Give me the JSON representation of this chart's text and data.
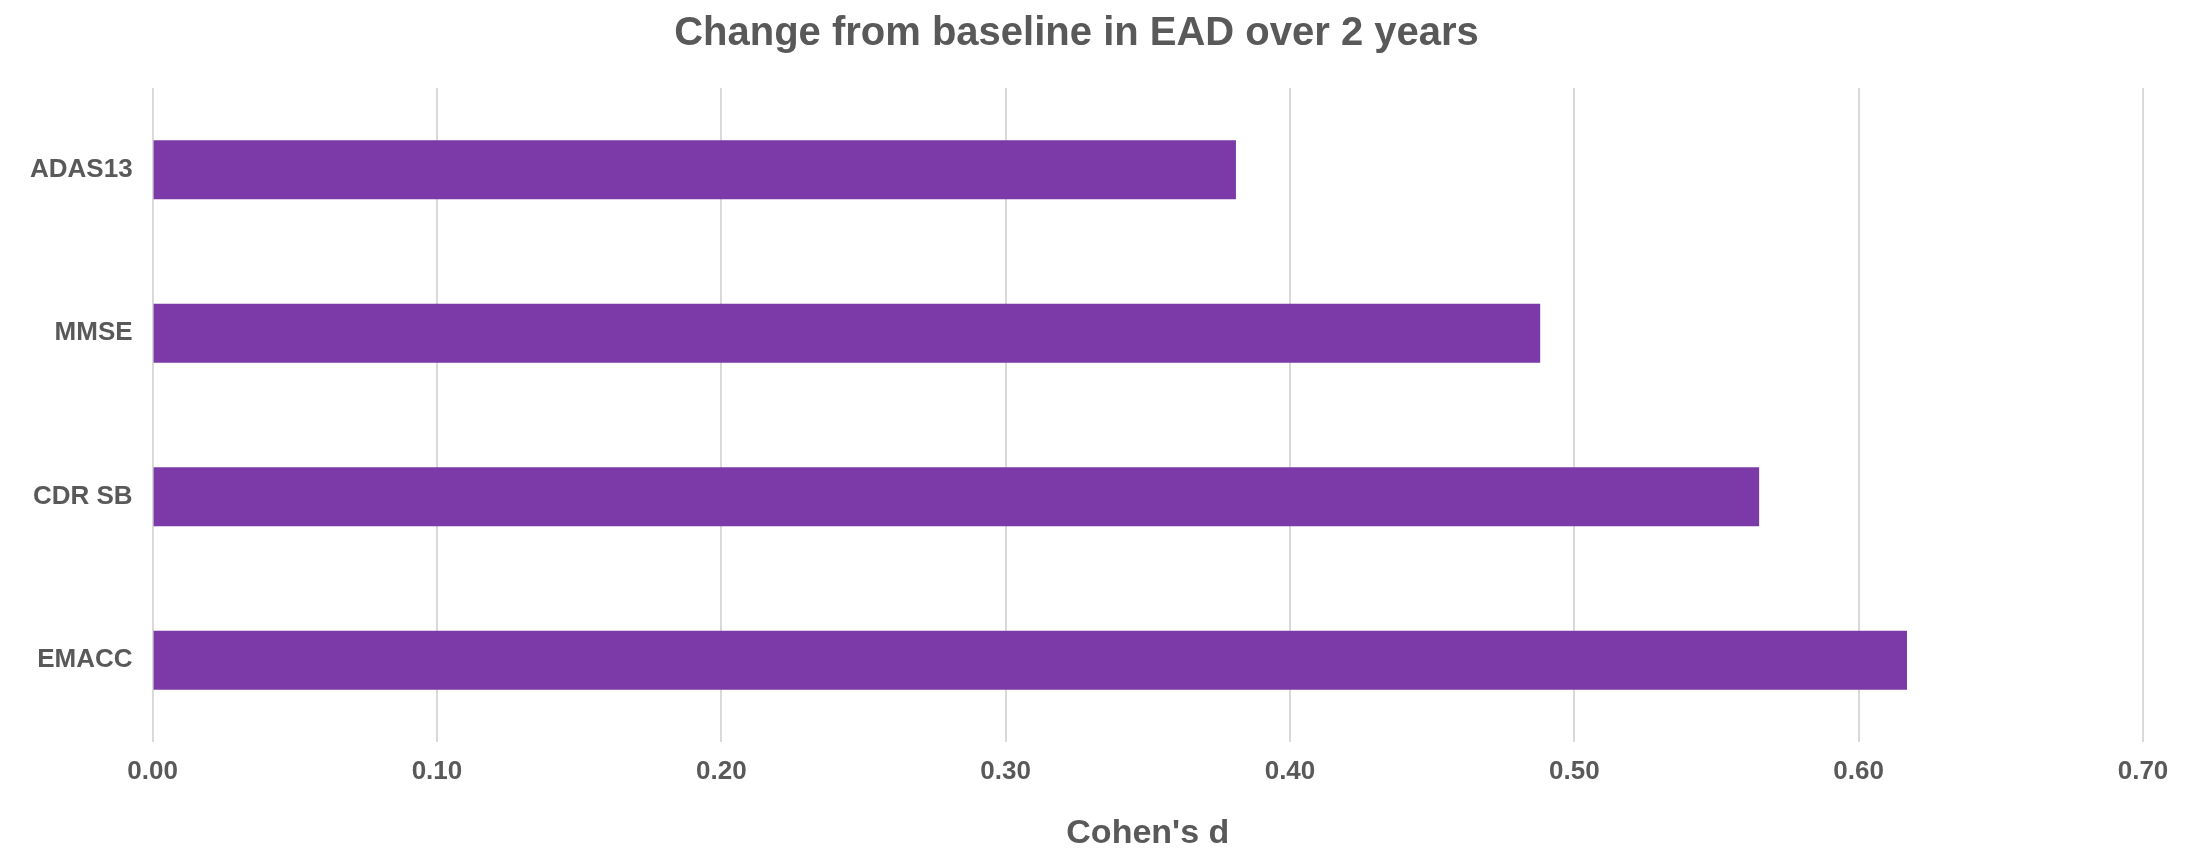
{
  "chart_data": {
    "type": "bar",
    "orientation": "horizontal",
    "title": "Change from baseline in EAD over 2 years",
    "xlabel": "Cohen's d",
    "categories": [
      "ADAS13",
      "MMSE",
      "CDR SB",
      "EMACC"
    ],
    "values": [
      0.381,
      0.488,
      0.565,
      0.617
    ],
    "color": "#7b3aa8",
    "xlim": [
      0,
      0.7
    ],
    "xticks": [
      {
        "value": 0,
        "label": "0.00"
      },
      {
        "value": 0.1,
        "label": "0.10"
      },
      {
        "value": 0.2,
        "label": "0.20"
      },
      {
        "value": 0.3,
        "label": "0.30"
      },
      {
        "value": 0.4,
        "label": "0.40"
      },
      {
        "value": 0.5,
        "label": "0.50"
      },
      {
        "value": 0.6,
        "label": "0.60"
      },
      {
        "value": 0.7,
        "label": "0.70"
      }
    ],
    "grid": "x"
  }
}
